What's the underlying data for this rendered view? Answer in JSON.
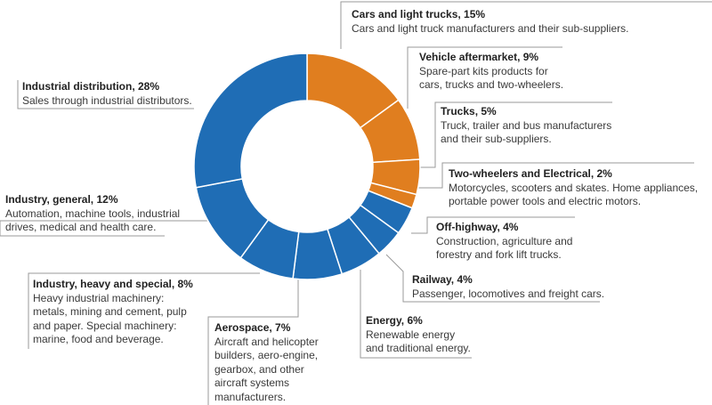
{
  "chart_data": {
    "type": "pie",
    "variant": "donut",
    "segments": [
      {
        "label": "Cars and light trucks",
        "value": 15,
        "title": "Cars and light trucks, 15%",
        "description": "Cars and light truck manufacturers and their sub-suppliers.",
        "color": "#E07E1F"
      },
      {
        "label": "Vehicle aftermarket",
        "value": 9,
        "title": "Vehicle aftermarket, 9%",
        "description": "Spare-part kits products for\ncars, trucks and two-wheelers.",
        "color": "#E07E1F"
      },
      {
        "label": "Trucks",
        "value": 5,
        "title": "Trucks, 5%",
        "description": "Truck, trailer and bus manufacturers\nand their sub-suppliers.",
        "color": "#E07E1F"
      },
      {
        "label": "Two-wheelers and Electrical",
        "value": 2,
        "title": "Two-wheelers and Electrical, 2%",
        "description": "Motorcycles, scooters and skates. Home appliances,\nportable power tools and electric motors.",
        "color": "#E07E1F"
      },
      {
        "label": "Off-highway",
        "value": 4,
        "title": "Off-highway, 4%",
        "description": "Construction, agriculture and\nforestry and fork lift trucks.",
        "color": "#1F6DB5"
      },
      {
        "label": "Railway",
        "value": 4,
        "title": "Railway, 4%",
        "description": "Passenger, locomotives and freight cars.",
        "color": "#1F6DB5"
      },
      {
        "label": "Energy",
        "value": 6,
        "title": "Energy, 6%",
        "description": "Renewable energy\nand traditional energy.",
        "color": "#1F6DB5"
      },
      {
        "label": "Aerospace",
        "value": 7,
        "title": "Aerospace, 7%",
        "description": "Aircraft and helicopter\nbuilders, aero-engine,\ngearbox, and other\naircraft systems\nmanufacturers.",
        "color": "#1F6DB5"
      },
      {
        "label": "Industry, heavy and special",
        "value": 8,
        "title": "Industry, heavy and special, 8%",
        "description": "Heavy industrial machinery:\nmetals, mining and cement, pulp\nand paper. Special machinery:\nmarine, food and beverage.",
        "color": "#1F6DB5"
      },
      {
        "label": "Industry, general",
        "value": 12,
        "title": "Industry, general, 12%",
        "description": "Automation, machine tools, industrial\ndrives, medical and health care.",
        "color": "#1F6DB5"
      },
      {
        "label": "Industrial distribution",
        "value": 28,
        "title": "Industrial distribution, 28%",
        "description": "Sales through industrial distributors.",
        "color": "#1F6DB5"
      }
    ]
  },
  "colors": {
    "automotive": "#E07E1F",
    "industrial": "#1F6DB5",
    "separator": "#ffffff",
    "leader_line": "#9a9a9a"
  }
}
